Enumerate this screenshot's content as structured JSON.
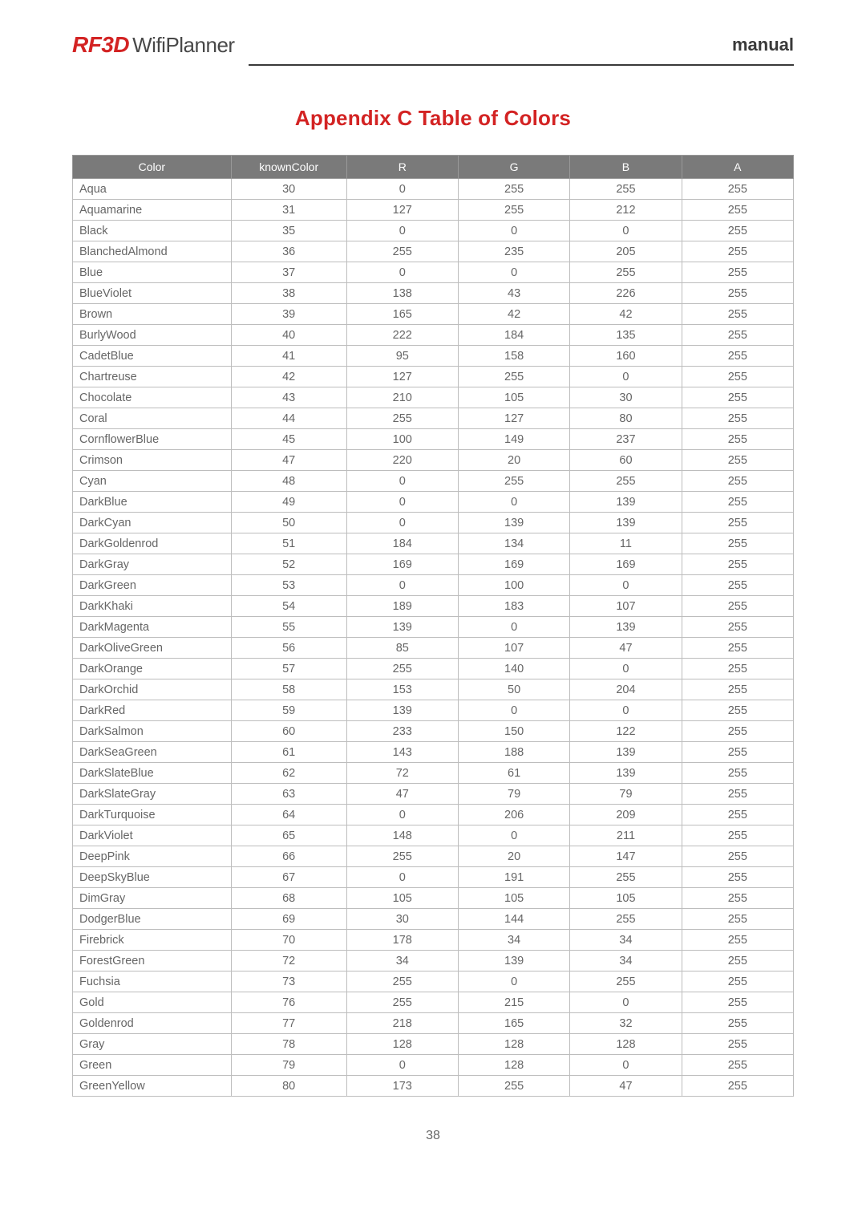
{
  "header": {
    "logo_rf3d": "RF3D",
    "logo_wifi": "WifiPlanner",
    "manual_label": "manual"
  },
  "title": "Appendix C Table of Colors",
  "page_number": "38",
  "table": {
    "columns": [
      "Color",
      "knownColor",
      "R",
      "G",
      "B",
      "A"
    ],
    "header_bg": "#7a7a7a",
    "header_fg": "#ffffff",
    "border_color": "#bdbdbd",
    "text_color": "#666666",
    "font_size": 14.5,
    "col_widths_pct": [
      22,
      16,
      15.5,
      15.5,
      15.5,
      15.5
    ],
    "rows": [
      [
        "Aqua",
        "30",
        "0",
        "255",
        "255",
        "255"
      ],
      [
        "Aquamarine",
        "31",
        "127",
        "255",
        "212",
        "255"
      ],
      [
        "Black",
        "35",
        "0",
        "0",
        "0",
        "255"
      ],
      [
        "BlanchedAlmond",
        "36",
        "255",
        "235",
        "205",
        "255"
      ],
      [
        "Blue",
        "37",
        "0",
        "0",
        "255",
        "255"
      ],
      [
        "BlueViolet",
        "38",
        "138",
        "43",
        "226",
        "255"
      ],
      [
        "Brown",
        "39",
        "165",
        "42",
        "42",
        "255"
      ],
      [
        "BurlyWood",
        "40",
        "222",
        "184",
        "135",
        "255"
      ],
      [
        "CadetBlue",
        "41",
        "95",
        "158",
        "160",
        "255"
      ],
      [
        "Chartreuse",
        "42",
        "127",
        "255",
        "0",
        "255"
      ],
      [
        "Chocolate",
        "43",
        "210",
        "105",
        "30",
        "255"
      ],
      [
        "Coral",
        "44",
        "255",
        "127",
        "80",
        "255"
      ],
      [
        "CornflowerBlue",
        "45",
        "100",
        "149",
        "237",
        "255"
      ],
      [
        "Crimson",
        "47",
        "220",
        "20",
        "60",
        "255"
      ],
      [
        "Cyan",
        "48",
        "0",
        "255",
        "255",
        "255"
      ],
      [
        "DarkBlue",
        "49",
        "0",
        "0",
        "139",
        "255"
      ],
      [
        "DarkCyan",
        "50",
        "0",
        "139",
        "139",
        "255"
      ],
      [
        "DarkGoldenrod",
        "51",
        "184",
        "134",
        "11",
        "255"
      ],
      [
        "DarkGray",
        "52",
        "169",
        "169",
        "169",
        "255"
      ],
      [
        "DarkGreen",
        "53",
        "0",
        "100",
        "0",
        "255"
      ],
      [
        "DarkKhaki",
        "54",
        "189",
        "183",
        "107",
        "255"
      ],
      [
        "DarkMagenta",
        "55",
        "139",
        "0",
        "139",
        "255"
      ],
      [
        "DarkOliveGreen",
        "56",
        "85",
        "107",
        "47",
        "255"
      ],
      [
        "DarkOrange",
        "57",
        "255",
        "140",
        "0",
        "255"
      ],
      [
        "DarkOrchid",
        "58",
        "153",
        "50",
        "204",
        "255"
      ],
      [
        "DarkRed",
        "59",
        "139",
        "0",
        "0",
        "255"
      ],
      [
        "DarkSalmon",
        "60",
        "233",
        "150",
        "122",
        "255"
      ],
      [
        "DarkSeaGreen",
        "61",
        "143",
        "188",
        "139",
        "255"
      ],
      [
        "DarkSlateBlue",
        "62",
        "72",
        "61",
        "139",
        "255"
      ],
      [
        "DarkSlateGray",
        "63",
        "47",
        "79",
        "79",
        "255"
      ],
      [
        "DarkTurquoise",
        "64",
        "0",
        "206",
        "209",
        "255"
      ],
      [
        "DarkViolet",
        "65",
        "148",
        "0",
        "211",
        "255"
      ],
      [
        "DeepPink",
        "66",
        "255",
        "20",
        "147",
        "255"
      ],
      [
        "DeepSkyBlue",
        "67",
        "0",
        "191",
        "255",
        "255"
      ],
      [
        "DimGray",
        "68",
        "105",
        "105",
        "105",
        "255"
      ],
      [
        "DodgerBlue",
        "69",
        "30",
        "144",
        "255",
        "255"
      ],
      [
        "Firebrick",
        "70",
        "178",
        "34",
        "34",
        "255"
      ],
      [
        "ForestGreen",
        "72",
        "34",
        "139",
        "34",
        "255"
      ],
      [
        "Fuchsia",
        "73",
        "255",
        "0",
        "255",
        "255"
      ],
      [
        "Gold",
        "76",
        "255",
        "215",
        "0",
        "255"
      ],
      [
        "Goldenrod",
        "77",
        "218",
        "165",
        "32",
        "255"
      ],
      [
        "Gray",
        "78",
        "128",
        "128",
        "128",
        "255"
      ],
      [
        "Green",
        "79",
        "0",
        "128",
        "0",
        "255"
      ],
      [
        "GreenYellow",
        "80",
        "173",
        "255",
        "47",
        "255"
      ]
    ]
  },
  "colors": {
    "title_color": "#d32323",
    "logo_red": "#d32323",
    "text_dark": "#3a3a3a"
  }
}
